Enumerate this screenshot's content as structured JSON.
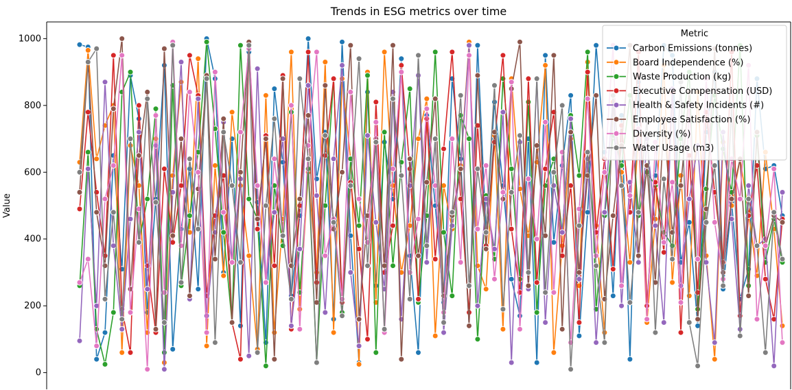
{
  "chart_data": {
    "type": "line",
    "title": "Trends in ESG metrics over time",
    "xlabel": "",
    "ylabel": "Value",
    "ylim": [
      -50,
      1050
    ],
    "yticks": [
      0,
      200,
      400,
      600,
      800,
      1000
    ],
    "legend": {
      "title": "Metric",
      "placement": "top-right"
    },
    "series": [
      {
        "name": "Carbon Emissions (tonnes)",
        "color": "#1f77b4",
        "values": [
          982,
          975,
          40,
          120,
          650,
          310,
          890,
          760,
          180,
          520,
          920,
          70,
          430,
          610,
          250,
          1000,
          880,
          300,
          700,
          140,
          960,
          510,
          90,
          850,
          630,
          230,
          470,
          1000,
          580,
          720,
          160,
          990,
          410,
          30,
          840,
          260,
          690,
          520,
          940,
          350,
          60,
          770,
          500,
          210,
          880,
          640,
          140,
          980,
          420,
          810,
          560,
          280,
          170,
          700,
          30,
          950,
          390,
          620,
          830,
          110,
          480,
          980,
          660,
          230,
          770,
          40,
          870,
          200,
          590,
          980,
          950,
          330,
          450,
          140,
          720,
          900,
          250,
          510,
          220,
          310,
          880,
          610,
          620,
          470
        ]
      },
      {
        "name": "Board Independence (%)",
        "color": "#ff7f0e",
        "values": [
          630,
          965,
          640,
          740,
          800,
          60,
          680,
          560,
          120,
          700,
          30,
          590,
          870,
          420,
          940,
          80,
          620,
          290,
          780,
          560,
          350,
          70,
          830,
          120,
          460,
          960,
          190,
          600,
          300,
          930,
          120,
          880,
          640,
          25,
          900,
          210,
          960,
          560,
          300,
          440,
          700,
          820,
          110,
          560,
          430,
          620,
          990,
          320,
          250,
          710,
          130,
          880,
          550,
          410,
          630,
          920,
          60,
          380,
          700,
          260,
          930,
          440,
          120,
          810,
          600,
          330,
          710,
          150,
          460,
          920,
          270,
          590,
          230,
          840,
          350,
          40,
          690,
          500,
          640,
          480,
          290,
          660,
          430,
          140
        ]
      },
      {
        "name": "Waste Production (kg)",
        "color": "#2ca02c",
        "values": [
          260,
          660,
          130,
          25,
          180,
          840,
          900,
          390,
          520,
          790,
          60,
          860,
          260,
          470,
          660,
          990,
          730,
          420,
          150,
          980,
          520,
          460,
          20,
          560,
          380,
          780,
          240,
          610,
          30,
          500,
          880,
          180,
          640,
          440,
          890,
          60,
          720,
          320,
          630,
          850,
          210,
          470,
          960,
          420,
          230,
          770,
          700,
          100,
          530,
          340,
          880,
          610,
          280,
          810,
          180,
          560,
          640,
          420,
          770,
          590,
          960,
          190,
          470,
          710,
          620,
          830,
          470,
          600,
          560,
          420,
          380,
          700,
          900,
          190,
          550,
          830,
          670,
          540,
          980,
          260,
          710,
          330,
          460,
          330
        ]
      },
      {
        "name": "Executive Compensation (USD)",
        "color": "#d62728",
        "values": [
          490,
          780,
          540,
          350,
          950,
          190,
          60,
          800,
          320,
          120,
          610,
          390,
          560,
          950,
          830,
          230,
          470,
          590,
          150,
          40,
          970,
          430,
          710,
          320,
          890,
          130,
          500,
          960,
          270,
          650,
          880,
          210,
          570,
          370,
          100,
          810,
          300,
          440,
          920,
          610,
          220,
          760,
          340,
          670,
          960,
          520,
          180,
          740,
          380,
          690,
          950,
          430,
          240,
          880,
          270,
          610,
          780,
          350,
          560,
          150,
          900,
          420,
          640,
          310,
          740,
          480,
          960,
          200,
          570,
          360,
          840,
          120,
          650,
          240,
          780,
          540,
          330,
          960,
          170,
          470,
          620,
          280,
          160,
          460
        ]
      },
      {
        "name": "Health & Safety Incidents (#)",
        "color": "#9467bd",
        "values": [
          95,
          610,
          200,
          870,
          380,
          130,
          460,
          720,
          250,
          680,
          10,
          540,
          930,
          220,
          820,
          170,
          420,
          750,
          330,
          580,
          50,
          910,
          270,
          480,
          700,
          140,
          370,
          860,
          530,
          180,
          640,
          920,
          300,
          80,
          710,
          450,
          250,
          840,
          160,
          560,
          890,
          330,
          700,
          120,
          440,
          610,
          980,
          200,
          520,
          370,
          780,
          30,
          690,
          250,
          880,
          150,
          560,
          420,
          760,
          280,
          640,
          90,
          480,
          830,
          200,
          570,
          330,
          700,
          440,
          150,
          850,
          260,
          520,
          680,
          330,
          90,
          720,
          460,
          130,
          560,
          380,
          400,
          20,
          540
        ]
      },
      {
        "name": "Employee Satisfaction (%)",
        "color": "#8c564b",
        "values": [
          540,
          930,
          480,
          320,
          790,
          1000,
          250,
          650,
          840,
          130,
          970,
          410,
          700,
          230,
          550,
          890,
          340,
          760,
          150,
          600,
          990,
          460,
          700,
          40,
          880,
          320,
          520,
          770,
          210,
          860,
          430,
          600,
          980,
          160,
          470,
          700,
          320,
          980,
          40,
          640,
          350,
          570,
          820,
          230,
          470,
          610,
          140,
          890,
          370,
          720,
          520,
          850,
          990,
          260,
          680,
          410,
          950,
          130,
          720,
          300,
          590,
          830,
          220,
          470,
          680,
          980,
          350,
          620,
          270,
          760,
          420,
          560,
          840,
          160,
          490,
          970,
          300,
          520,
          640,
          230,
          720,
          380,
          470,
          450
        ]
      },
      {
        "name": "Diversity (%)",
        "color": "#e377c2",
        "values": [
          270,
          340,
          80,
          520,
          620,
          950,
          180,
          490,
          10,
          770,
          240,
          990,
          380,
          840,
          600,
          120,
          900,
          480,
          330,
          720,
          970,
          560,
          270,
          640,
          410,
          800,
          130,
          680,
          960,
          350,
          460,
          220,
          840,
          520,
          390,
          750,
          120,
          610,
          900,
          300,
          460,
          790,
          560,
          180,
          700,
          330,
          950,
          430,
          620,
          280,
          540,
          870,
          130,
          580,
          400,
          750,
          240,
          660,
          90,
          490,
          820,
          350,
          600,
          980,
          260,
          530,
          730,
          160,
          690,
          390,
          570,
          210,
          800,
          340,
          880,
          450,
          280,
          640,
          520,
          920,
          160,
          380,
          610,
          90
        ]
      },
      {
        "name": "Water Usage (m3)",
        "color": "#7f7f7f",
        "values": [
          600,
          930,
          970,
          220,
          480,
          160,
          700,
          390,
          820,
          510,
          150,
          980,
          270,
          640,
          430,
          880,
          90,
          720,
          560,
          330,
          980,
          60,
          500,
          760,
          410,
          220,
          880,
          640,
          30,
          710,
          450,
          170,
          560,
          940,
          320,
          690,
          130,
          820,
          590,
          220,
          950,
          380,
          700,
          150,
          480,
          830,
          260,
          610,
          420,
          860,
          190,
          540,
          710,
          300,
          880,
          240,
          600,
          800,
          10,
          440,
          660,
          320,
          90,
          830,
          560,
          210,
          480,
          760,
          120,
          580,
          340,
          870,
          150,
          20,
          450,
          620,
          260,
          800,
          110,
          520,
          380,
          60,
          480,
          340
        ]
      }
    ]
  }
}
